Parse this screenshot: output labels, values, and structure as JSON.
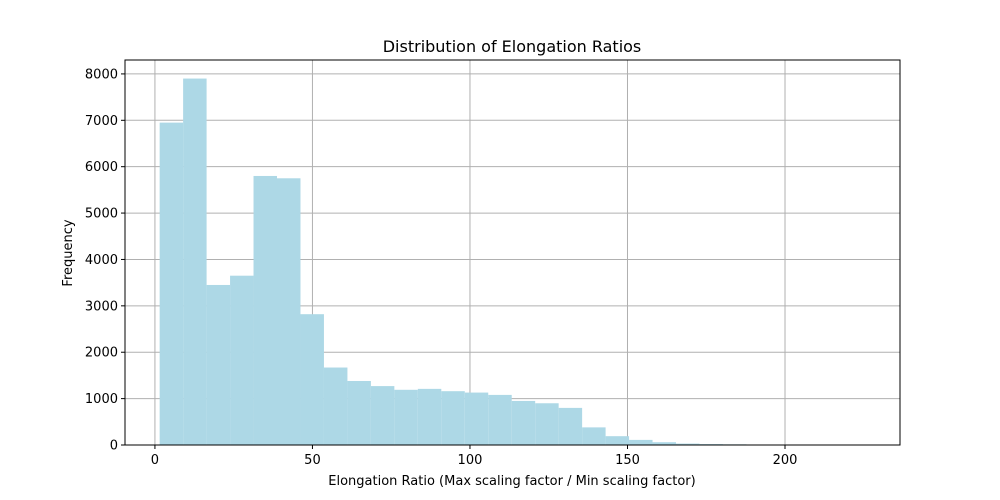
{
  "chart_data": {
    "type": "bar",
    "title": "Distribution of Elongation Ratios",
    "xlabel": "Elongation Ratio (Max scaling factor / Min scaling factor)",
    "ylabel": "Frequency",
    "xlim": [
      -9.5,
      236.5
    ],
    "ylim": [
      0,
      8300
    ],
    "x_ticks": [
      0,
      50,
      100,
      150,
      200
    ],
    "y_ticks": [
      0,
      1000,
      2000,
      3000,
      4000,
      5000,
      6000,
      7000,
      8000
    ],
    "grid": true,
    "bar_color": "#add8e6",
    "bins": {
      "start": 1.5,
      "width": 7.45,
      "counts": [
        6950,
        7900,
        3450,
        3650,
        5800,
        5750,
        2820,
        1670,
        1380,
        1270,
        1190,
        1210,
        1160,
        1130,
        1080,
        950,
        900,
        800,
        380,
        190,
        110,
        60,
        30,
        20,
        15,
        10,
        6,
        5,
        4,
        3
      ]
    }
  }
}
